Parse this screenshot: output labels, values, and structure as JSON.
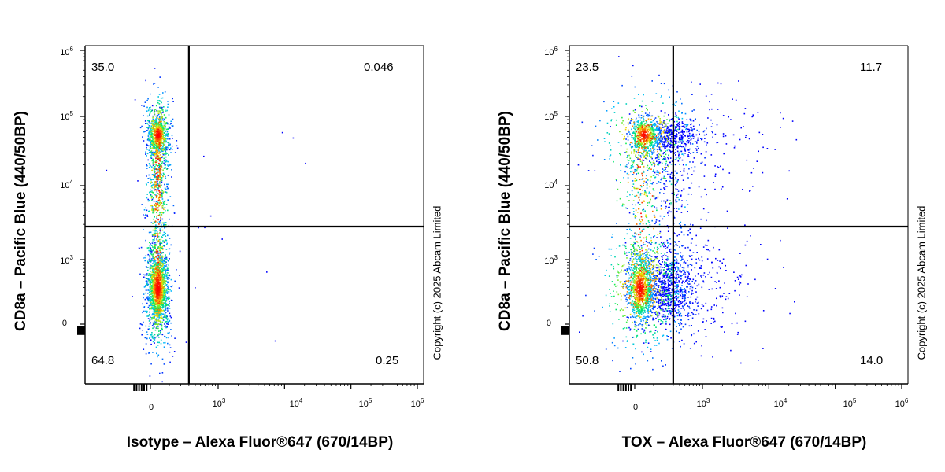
{
  "chart_data": [
    {
      "type": "scatter",
      "subtype": "flow-cytometry-density-dot-plot",
      "xlabel": "Isotype – Alexa Fluor®647 (670/14BP)",
      "ylabel": "CD8a – Pacific Blue (440/50BP)",
      "x_scale": "biexponential",
      "y_scale": "biexponential",
      "x_ticks": [
        "0",
        "10^3",
        "10^4",
        "10^5",
        "10^6"
      ],
      "y_ticks": [
        "0",
        "10^3",
        "10^4",
        "10^5",
        "10^6"
      ],
      "x_gate": 300,
      "y_gate": 2800,
      "quadrants": {
        "upper_left": "35.0",
        "upper_right": "0.046",
        "lower_left": "64.8",
        "lower_right": "0.25"
      },
      "populations": [
        {
          "name": "",
          "x_center": 30,
          "y_center": 300,
          "spread_x": 0.15,
          "spread_y": 0.25,
          "share": 0.648
        },
        {
          "name": "",
          "x_center": 30,
          "y_center": 55000,
          "spread_x": 0.15,
          "spread_y": 0.18,
          "share": 0.35
        }
      ]
    },
    {
      "type": "scatter",
      "subtype": "flow-cytometry-density-dot-plot",
      "xlabel": "TOX – Alexa Fluor®647 (670/14BP)",
      "ylabel": "CD8a – Pacific Blue (440/50BP)",
      "x_scale": "biexponential",
      "y_scale": "biexponential",
      "x_ticks": [
        "0",
        "10^3",
        "10^4",
        "10^5",
        "10^6"
      ],
      "y_ticks": [
        "0",
        "10^3",
        "10^4",
        "10^5",
        "10^6"
      ],
      "x_gate": 300,
      "y_gate": 2800,
      "quadrants": {
        "upper_left": "23.5",
        "upper_right": "11.7",
        "lower_left": "50.8",
        "lower_right": "14.0"
      },
      "populations": [
        {
          "name": "",
          "x_center": 20,
          "y_center": 300,
          "spread_x": 0.4,
          "spread_y": 0.25,
          "share": 0.648
        },
        {
          "name": "",
          "x_center": 40,
          "y_center": 55000,
          "spread_x": 0.45,
          "spread_y": 0.18,
          "share": 0.352
        }
      ]
    }
  ],
  "copyright": "Copyright (c) 2025 Abcam Limited",
  "colors": {
    "low": "#0000ff",
    "mid": "#00ff66",
    "high": "#ff0000",
    "gate": "#000000"
  }
}
